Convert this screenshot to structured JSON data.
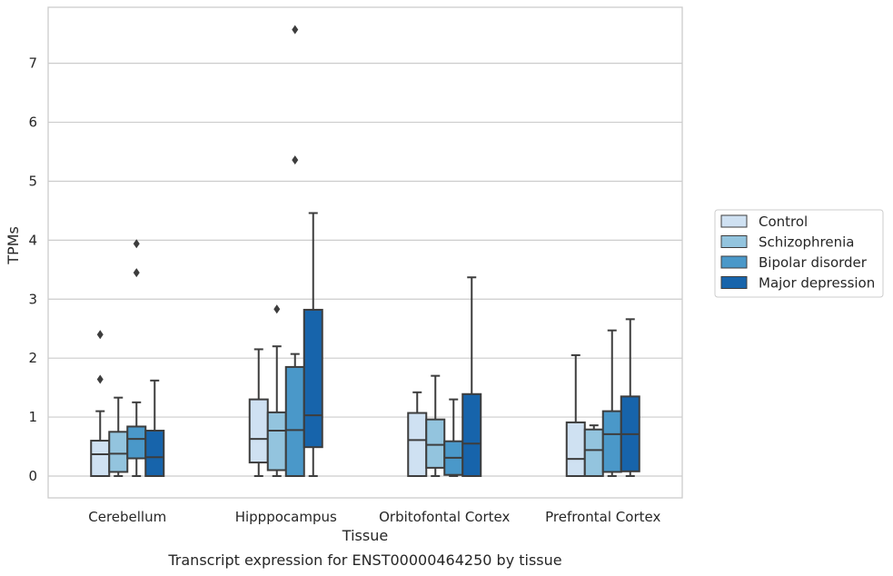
{
  "chart_data": {
    "type": "box",
    "xlabel": "Tissue",
    "ylabel": "TPMs",
    "caption": "Transcript expression for ENST00000464250 by tissue",
    "ylim": [
      -0.37,
      7.95
    ],
    "yticks": [
      0,
      1,
      2,
      3,
      4,
      5,
      6,
      7
    ],
    "grid": "horizontal",
    "legend_position": "right",
    "categories": [
      "Cerebellum",
      "Hipppocampus",
      "Orbitofontal Cortex",
      "Prefrontal Cortex"
    ],
    "series": [
      {
        "name": "Control",
        "color": "#cfe1f2",
        "boxes": [
          {
            "whislo": 0.0,
            "q1": 0.0,
            "med": 0.37,
            "q3": 0.6,
            "whishi": 1.1,
            "fliers": [
              1.64,
              2.4
            ]
          },
          {
            "whislo": 0.0,
            "q1": 0.23,
            "med": 0.63,
            "q3": 1.3,
            "whishi": 2.15,
            "fliers": []
          },
          {
            "whislo": 0.0,
            "q1": 0.0,
            "med": 0.61,
            "q3": 1.07,
            "whishi": 1.42,
            "fliers": []
          },
          {
            "whislo": 0.0,
            "q1": 0.0,
            "med": 0.29,
            "q3": 0.91,
            "whishi": 2.05,
            "fliers": []
          }
        ]
      },
      {
        "name": "Schizophrenia",
        "color": "#93c4de",
        "boxes": [
          {
            "whislo": 0.0,
            "q1": 0.07,
            "med": 0.38,
            "q3": 0.75,
            "whishi": 1.33,
            "fliers": []
          },
          {
            "whislo": 0.0,
            "q1": 0.1,
            "med": 0.77,
            "q3": 1.08,
            "whishi": 2.2,
            "fliers": [
              2.83
            ]
          },
          {
            "whislo": 0.0,
            "q1": 0.14,
            "med": 0.53,
            "q3": 0.96,
            "whishi": 1.7,
            "fliers": []
          },
          {
            "whislo": 0.0,
            "q1": 0.0,
            "med": 0.44,
            "q3": 0.79,
            "whishi": 0.86,
            "fliers": []
          }
        ]
      },
      {
        "name": "Bipolar disorder",
        "color": "#4a98c9",
        "boxes": [
          {
            "whislo": 0.0,
            "q1": 0.3,
            "med": 0.63,
            "q3": 0.84,
            "whishi": 1.25,
            "fliers": [
              3.45,
              3.94
            ]
          },
          {
            "whislo": 0.0,
            "q1": 0.0,
            "med": 0.78,
            "q3": 1.85,
            "whishi": 2.07,
            "fliers": [
              5.36,
              7.57
            ]
          },
          {
            "whislo": 0.0,
            "q1": 0.02,
            "med": 0.31,
            "q3": 0.59,
            "whishi": 1.3,
            "fliers": []
          },
          {
            "whislo": 0.0,
            "q1": 0.07,
            "med": 0.71,
            "q3": 1.1,
            "whishi": 2.47,
            "fliers": []
          }
        ]
      },
      {
        "name": "Major depression",
        "color": "#1764ab",
        "boxes": [
          {
            "whislo": 0.0,
            "q1": 0.0,
            "med": 0.32,
            "q3": 0.77,
            "whishi": 1.62,
            "fliers": []
          },
          {
            "whislo": 0.0,
            "q1": 0.49,
            "med": 1.03,
            "q3": 2.82,
            "whishi": 4.46,
            "fliers": []
          },
          {
            "whislo": 0.0,
            "q1": 0.0,
            "med": 0.55,
            "q3": 1.39,
            "whishi": 3.37,
            "fliers": []
          },
          {
            "whislo": 0.0,
            "q1": 0.08,
            "med": 0.71,
            "q3": 1.35,
            "whishi": 2.66,
            "fliers": []
          }
        ]
      }
    ]
  }
}
